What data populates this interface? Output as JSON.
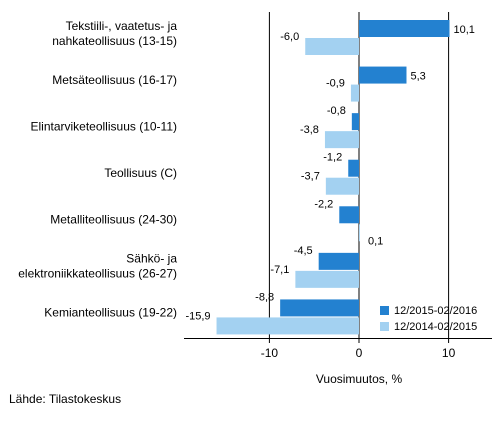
{
  "chart_data": {
    "type": "bar",
    "orientation": "horizontal",
    "categories": [
      [
        "Tekstiili-, vaatetus- ja",
        "nahkateollisuus (13-15)"
      ],
      [
        "Metsäteollisuus (16-17)"
      ],
      [
        "Elintarviketeollisuus (10-11)"
      ],
      [
        "Teollisuus (C)"
      ],
      [
        "Metalliteollisuus (24-30)"
      ],
      [
        "Sähkö- ja",
        "elektroniikkateollisuus (26-27)"
      ],
      [
        "Kemianteollisuus (19-22)"
      ]
    ],
    "series": [
      {
        "name": "12/2015-02/2016",
        "color": "#2381d0",
        "values": [
          10.1,
          5.3,
          -0.8,
          -1.2,
          -2.2,
          -4.5,
          -8.8
        ],
        "labels": [
          "10,1",
          "5,3",
          "-0,8",
          "-1,2",
          "-2,2",
          "-4,5",
          "-8,8"
        ]
      },
      {
        "name": "12/2014-02/2015",
        "color": "#a3d1f1",
        "values": [
          -6.0,
          -0.9,
          -3.8,
          -3.7,
          0.1,
          -7.1,
          -15.9
        ],
        "labels": [
          "-6,0",
          "-0,9",
          "-3,8",
          "-3,7",
          "0,1",
          "-7,1",
          "-15,9"
        ]
      }
    ],
    "xlim": [
      -20,
      13
    ],
    "xticks": [
      -10,
      0,
      10
    ],
    "xtick_labels": [
      "-10",
      "0",
      "10"
    ],
    "xlabel": "Vuosimuutos, %",
    "ylabel": "",
    "title": "",
    "grid": true,
    "legend_position": "bottom-right"
  },
  "source": "Lähde: Tilastokeskus"
}
